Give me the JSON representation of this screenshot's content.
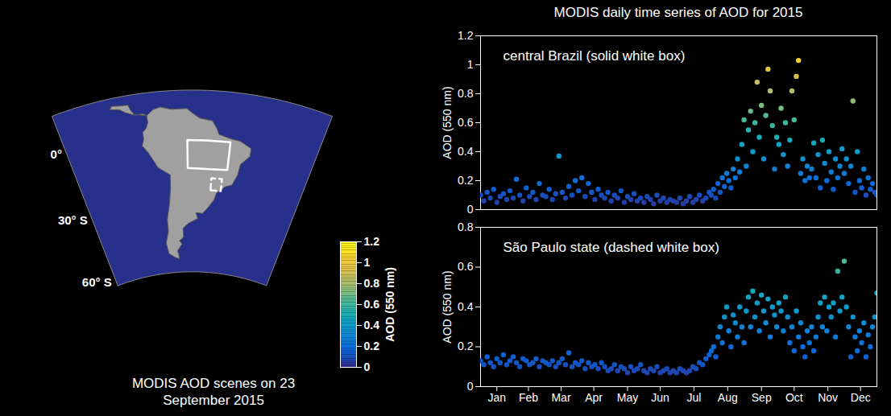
{
  "chart_data": [
    {
      "type": "map",
      "title": "MODIS AOD scenes on 23 September 2015",
      "lat_ticks": [
        {
          "value": 0,
          "label": "0°"
        },
        {
          "value": -30,
          "label": "30° S"
        },
        {
          "value": -60,
          "label": "60° S"
        }
      ],
      "boxes": [
        {
          "lon": [
            -62,
            -44
          ],
          "lat": [
            -16,
            -4
          ],
          "line_style": "solid"
        },
        {
          "lon": [
            -51,
            -46
          ],
          "lat": [
            -25,
            -20
          ],
          "line_style": "dashed"
        }
      ],
      "colorbar": {
        "label": "AOD (550 nm)",
        "range": [
          0,
          1.2
        ],
        "ticks": [
          0,
          0.2,
          0.4,
          0.6,
          0.8,
          1,
          1.2
        ]
      }
    },
    {
      "type": "scatter",
      "title": "MODIS daily time series of AOD for 2015",
      "annotation": "central Brazil (solid white box)",
      "ylabel": "AOD (550 nm)",
      "marker": "circle",
      "tick_labels": "y",
      "xlim": [
        1,
        365
      ],
      "xticks": [
        {
          "value": 16,
          "label": "Jan"
        },
        {
          "value": 45,
          "label": "Feb"
        },
        {
          "value": 75,
          "label": "Mar"
        },
        {
          "value": 105,
          "label": "Apr"
        },
        {
          "value": 136,
          "label": "May"
        },
        {
          "value": 166,
          "label": "Jun"
        },
        {
          "value": 197,
          "label": "Jul"
        },
        {
          "value": 228,
          "label": "Aug"
        },
        {
          "value": 259,
          "label": "Sep"
        },
        {
          "value": 289,
          "label": "Oct"
        },
        {
          "value": 320,
          "label": "Nov"
        },
        {
          "value": 350,
          "label": "Dec"
        }
      ],
      "ylim": [
        0,
        1.2
      ],
      "yticks": [
        0,
        0.2,
        0.4,
        0.6,
        0.8,
        1,
        1.2
      ],
      "x": [
        1,
        4,
        7,
        10,
        13,
        16,
        19,
        22,
        25,
        28,
        31,
        34,
        37,
        40,
        43,
        46,
        49,
        52,
        55,
        58,
        61,
        64,
        67,
        70,
        73,
        76,
        79,
        82,
        85,
        88,
        91,
        94,
        97,
        100,
        103,
        106,
        109,
        112,
        115,
        118,
        121,
        124,
        127,
        130,
        133,
        136,
        139,
        142,
        145,
        148,
        151,
        154,
        157,
        160,
        163,
        166,
        169,
        172,
        175,
        178,
        181,
        184,
        187,
        190,
        193,
        196,
        199,
        202,
        205,
        208,
        211,
        213,
        215,
        217,
        219,
        221,
        223,
        225,
        227,
        229,
        231,
        233,
        235,
        237,
        239,
        241,
        243,
        245,
        247,
        249,
        251,
        253,
        255,
        257,
        259,
        261,
        263,
        265,
        267,
        269,
        271,
        273,
        275,
        277,
        279,
        281,
        283,
        285,
        287,
        289,
        291,
        293,
        295,
        297,
        299,
        301,
        303,
        305,
        307,
        309,
        311,
        313,
        315,
        317,
        319,
        321,
        323,
        325,
        327,
        329,
        331,
        333,
        335,
        337,
        339,
        341,
        343,
        345,
        347,
        349,
        351,
        353,
        355,
        357,
        359,
        361,
        363,
        365
      ],
      "values": [
        0.1,
        0.06,
        0.12,
        0.08,
        0.14,
        0.05,
        0.09,
        0.11,
        0.07,
        0.13,
        0.08,
        0.21,
        0.1,
        0.06,
        0.15,
        0.09,
        0.12,
        0.07,
        0.18,
        0.1,
        0.09,
        0.14,
        0.07,
        0.11,
        0.37,
        0.12,
        0.08,
        0.16,
        0.1,
        0.2,
        0.13,
        0.22,
        0.09,
        0.18,
        0.12,
        0.07,
        0.14,
        0.1,
        0.08,
        0.12,
        0.06,
        0.1,
        0.08,
        0.13,
        0.05,
        0.09,
        0.07,
        0.11,
        0.06,
        0.08,
        0.05,
        0.09,
        0.07,
        0.04,
        0.1,
        0.06,
        0.08,
        0.05,
        0.07,
        0.06,
        0.05,
        0.08,
        0.04,
        0.06,
        0.09,
        0.05,
        0.07,
        0.1,
        0.06,
        0.08,
        0.12,
        0.1,
        0.14,
        0.08,
        0.18,
        0.12,
        0.22,
        0.16,
        0.25,
        0.2,
        0.15,
        0.28,
        0.22,
        0.35,
        0.26,
        0.45,
        0.62,
        0.3,
        0.55,
        0.68,
        0.4,
        0.6,
        0.88,
        0.5,
        0.72,
        0.35,
        0.65,
        0.97,
        0.82,
        0.58,
        0.28,
        0.5,
        0.45,
        0.7,
        0.38,
        0.6,
        0.3,
        0.48,
        0.82,
        0.62,
        0.92,
        1.03,
        0.25,
        0.35,
        0.2,
        0.3,
        0.22,
        0.28,
        0.46,
        0.22,
        0.38,
        0.15,
        0.48,
        0.32,
        0.2,
        0.4,
        0.26,
        0.14,
        0.35,
        0.22,
        0.3,
        0.42,
        0.25,
        0.35,
        0.18,
        0.3,
        0.75,
        0.12,
        0.4,
        0.2,
        0.15,
        0.28,
        0.1,
        0.22,
        0.14,
        0.18,
        0.12,
        0.1
      ]
    },
    {
      "type": "scatter",
      "annotation": "São Paulo state (dashed white box)",
      "ylabel": "AOD (550 nm)",
      "marker": "circle",
      "xlim": [
        1,
        365
      ],
      "xticks": [
        {
          "value": 16,
          "label": "Jan"
        },
        {
          "value": 45,
          "label": "Feb"
        },
        {
          "value": 75,
          "label": "Mar"
        },
        {
          "value": 105,
          "label": "Apr"
        },
        {
          "value": 136,
          "label": "May"
        },
        {
          "value": 166,
          "label": "Jun"
        },
        {
          "value": 197,
          "label": "Jul"
        },
        {
          "value": 228,
          "label": "Aug"
        },
        {
          "value": 259,
          "label": "Sep"
        },
        {
          "value": 289,
          "label": "Oct"
        },
        {
          "value": 320,
          "label": "Nov"
        },
        {
          "value": 350,
          "label": "Dec"
        }
      ],
      "ylim": [
        0,
        0.8
      ],
      "yticks": [
        0,
        0.2,
        0.4,
        0.6,
        0.8
      ],
      "x": [
        1,
        4,
        7,
        10,
        13,
        16,
        19,
        22,
        25,
        28,
        31,
        34,
        37,
        40,
        43,
        46,
        49,
        52,
        55,
        58,
        61,
        64,
        67,
        70,
        73,
        76,
        79,
        82,
        85,
        88,
        91,
        94,
        97,
        100,
        103,
        106,
        109,
        112,
        115,
        118,
        121,
        124,
        127,
        130,
        133,
        136,
        139,
        142,
        145,
        148,
        151,
        154,
        157,
        160,
        163,
        166,
        169,
        172,
        175,
        178,
        181,
        184,
        187,
        190,
        193,
        196,
        199,
        202,
        205,
        208,
        211,
        213,
        215,
        217,
        219,
        221,
        223,
        225,
        227,
        229,
        231,
        233,
        235,
        237,
        239,
        241,
        243,
        245,
        247,
        249,
        251,
        253,
        255,
        257,
        259,
        261,
        263,
        265,
        267,
        269,
        271,
        273,
        275,
        277,
        279,
        281,
        283,
        285,
        287,
        289,
        291,
        293,
        295,
        297,
        299,
        301,
        303,
        305,
        307,
        309,
        311,
        313,
        315,
        317,
        319,
        321,
        323,
        325,
        327,
        329,
        331,
        333,
        335,
        337,
        339,
        341,
        343,
        345,
        347,
        349,
        351,
        353,
        355,
        357,
        359,
        361,
        363,
        365
      ],
      "values": [
        0.13,
        0.11,
        0.15,
        0.12,
        0.1,
        0.14,
        0.12,
        0.16,
        0.11,
        0.13,
        0.15,
        0.12,
        0.1,
        0.14,
        0.13,
        0.11,
        0.12,
        0.14,
        0.1,
        0.13,
        0.12,
        0.11,
        0.13,
        0.1,
        0.12,
        0.14,
        0.11,
        0.17,
        0.1,
        0.12,
        0.11,
        0.13,
        0.09,
        0.12,
        0.1,
        0.11,
        0.09,
        0.12,
        0.1,
        0.08,
        0.09,
        0.11,
        0.08,
        0.1,
        0.09,
        0.07,
        0.1,
        0.08,
        0.09,
        0.11,
        0.08,
        0.07,
        0.09,
        0.08,
        0.1,
        0.07,
        0.08,
        0.09,
        0.07,
        0.08,
        0.07,
        0.09,
        0.08,
        0.07,
        0.08,
        0.1,
        0.09,
        0.12,
        0.11,
        0.14,
        0.16,
        0.18,
        0.2,
        0.15,
        0.25,
        0.3,
        0.22,
        0.35,
        0.4,
        0.28,
        0.2,
        0.36,
        0.32,
        0.25,
        0.4,
        0.3,
        0.22,
        0.38,
        0.45,
        0.3,
        0.48,
        0.35,
        0.42,
        0.28,
        0.46,
        0.38,
        0.32,
        0.44,
        0.25,
        0.4,
        0.36,
        0.3,
        0.42,
        0.38,
        0.28,
        0.45,
        0.35,
        0.22,
        0.3,
        0.18,
        0.38,
        0.25,
        0.32,
        0.2,
        0.15,
        0.28,
        0.22,
        0.3,
        0.18,
        0.25,
        0.35,
        0.42,
        0.3,
        0.45,
        0.28,
        0.4,
        0.35,
        0.42,
        0.25,
        0.58,
        0.38,
        0.45,
        0.63,
        0.4,
        0.3,
        0.15,
        0.35,
        0.25,
        0.18,
        0.28,
        0.22,
        0.32,
        0.15,
        0.26,
        0.2,
        0.3,
        0.35,
        0.47
      ]
    }
  ]
}
